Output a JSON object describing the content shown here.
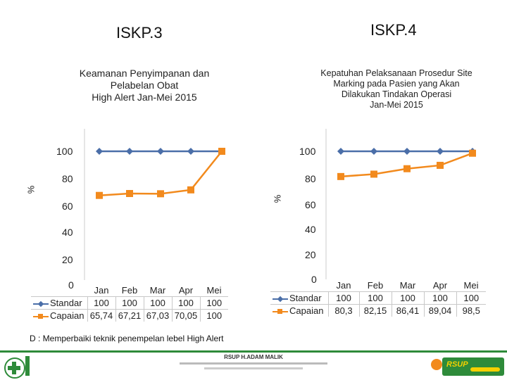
{
  "header": {
    "left_title": "ISKP.3",
    "right_title": "ISKP.4"
  },
  "colors": {
    "standar": "#4a6ea8",
    "capaian": "#f28a1d",
    "grid": "#cccccc"
  },
  "chart_data": [
    {
      "type": "line",
      "title_lines": [
        "Keamanan Penyimpanan dan",
        "Pelabelan Obat",
        "High Alert Jan-Mei 2015"
      ],
      "ylabel": "%",
      "categories": [
        "Jan",
        "Feb",
        "Mar",
        "Apr",
        "Mei"
      ],
      "yticks": [
        "0",
        "20",
        "40",
        "60",
        "80",
        "100"
      ],
      "ylim": [
        0,
        100
      ],
      "series": [
        {
          "name": "Standar",
          "values": [
            100,
            100,
            100,
            100,
            100
          ],
          "labels": [
            "100",
            "100",
            "100",
            "100",
            "100"
          ],
          "marker": "diamond"
        },
        {
          "name": "Capaian",
          "values": [
            65.74,
            67.21,
            67.03,
            70.05,
            100
          ],
          "labels": [
            "65,74",
            "67,21",
            "67,03",
            "70,05",
            "100"
          ],
          "marker": "square"
        }
      ]
    },
    {
      "type": "line",
      "title_lines": [
        "Kepatuhan Pelaksanaan Prosedur Site",
        "Marking pada Pasien yang Akan",
        "Dilakukan Tindakan Operasi",
        "Jan-Mei 2015"
      ],
      "ylabel": "%",
      "categories": [
        "Jan",
        "Feb",
        "Mar",
        "Apr",
        "Mei"
      ],
      "yticks": [
        "0",
        "20",
        "40",
        "60",
        "80",
        "100"
      ],
      "ylim": [
        0,
        100
      ],
      "series": [
        {
          "name": "Standar",
          "values": [
            100,
            100,
            100,
            100,
            100
          ],
          "labels": [
            "100",
            "100",
            "100",
            "100",
            "100"
          ],
          "marker": "diamond"
        },
        {
          "name": "Capaian",
          "values": [
            80.3,
            82.15,
            86.41,
            89.04,
            98.5
          ],
          "labels": [
            "80,3",
            "82,15",
            "86,41",
            "89,04",
            "98,5"
          ],
          "marker": "square"
        }
      ]
    }
  ],
  "note": "D : Memperbaiki teknik penempelan lebel High Alert",
  "footer": {
    "org": "RSUP H.ADAM MALIK",
    "logo_text": "RSUP"
  }
}
